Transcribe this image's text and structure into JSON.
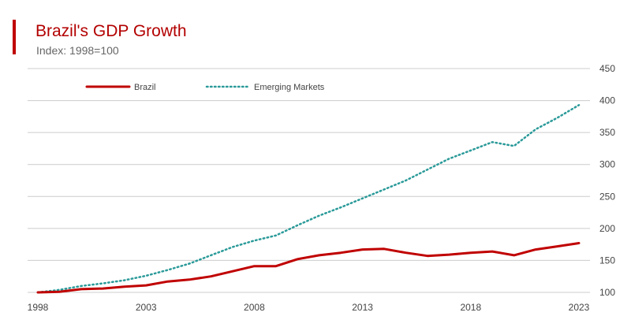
{
  "title": "Brazil's GDP Growth",
  "subtitle": "Index: 1998=100",
  "colors": {
    "title": "#b30000",
    "accent": "#c00000",
    "brazil": "#c00000",
    "emerging": "#2a9a99",
    "grid": "#cccccc"
  },
  "chart_data": {
    "type": "line",
    "title": "Brazil's GDP Growth",
    "subtitle": "Index: 1998=100",
    "xlabel": "",
    "ylabel": "",
    "xlim": [
      1998,
      2023
    ],
    "ylim": [
      100,
      450
    ],
    "y_axis_position": "right",
    "grid": "horizontal",
    "legend_position": "top-left",
    "x_ticks": [
      1998,
      2003,
      2008,
      2013,
      2018,
      2023
    ],
    "y_ticks": [
      100,
      150,
      200,
      250,
      300,
      350,
      400,
      450
    ],
    "x": [
      1998,
      1999,
      2000,
      2001,
      2002,
      2003,
      2004,
      2005,
      2006,
      2007,
      2008,
      2009,
      2010,
      2011,
      2012,
      2013,
      2014,
      2015,
      2016,
      2017,
      2018,
      2019,
      2020,
      2021,
      2022,
      2023
    ],
    "series": [
      {
        "name": "Brazil",
        "style": "solid",
        "values": [
          100,
          101,
          105,
          106,
          109,
          111,
          117,
          120,
          125,
          133,
          141,
          141,
          152,
          158,
          162,
          167,
          168,
          162,
          157,
          159,
          162,
          164,
          158,
          167,
          172,
          177
        ]
      },
      {
        "name": "Emerging Markets",
        "style": "dotted",
        "values": [
          100,
          104,
          110,
          114,
          119,
          126,
          135,
          145,
          158,
          171,
          181,
          189,
          205,
          220,
          233,
          247,
          261,
          275,
          292,
          309,
          322,
          335,
          329,
          355,
          373,
          393
        ]
      }
    ]
  }
}
